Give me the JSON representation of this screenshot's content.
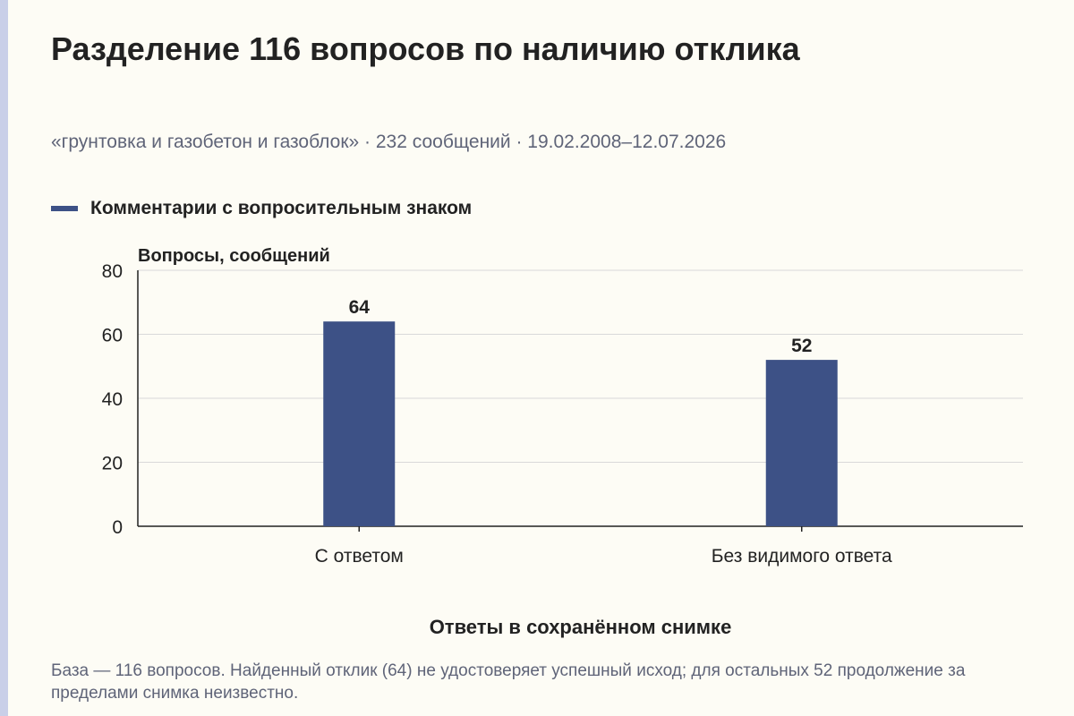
{
  "title": "Разделение 116 вопросов по наличию отклика",
  "subtitle": "«грунтовка и газобетон и газоблок» · 232 сообщений · 19.02.2008–12.07.2026",
  "note": "База — 116 вопросов. Найденный отклик (64) не удостоверяет успешный исход; для остальных 52 продолжение за пределами снимка неизвестно.",
  "colors": {
    "bar": "#3d5186",
    "grid": "#d9d9d9",
    "axis": "#222222"
  },
  "chart_data": {
    "type": "bar",
    "title": "Разделение 116 вопросов по наличию отклика",
    "subtitle": "«грунтовка и газобетон и газоблок» · 232 сообщений · 19.02.2008–12.07.2026",
    "categories": [
      "С ответом",
      "Без видимого ответа"
    ],
    "series": [
      {
        "name": "Комментарии с вопросительным знаком",
        "values": [
          64,
          52
        ]
      }
    ],
    "data_labels": [
      "64",
      "52"
    ],
    "xlabel": "Ответы в сохранённом снимке",
    "ylabel": "Вопросы, сообщений",
    "ylim": [
      0,
      80
    ],
    "yticks": [
      0,
      20,
      40,
      60,
      80
    ],
    "ytick_labels": [
      "0",
      "20",
      "40",
      "60",
      "80"
    ],
    "grid": true,
    "legend": "top-left"
  }
}
